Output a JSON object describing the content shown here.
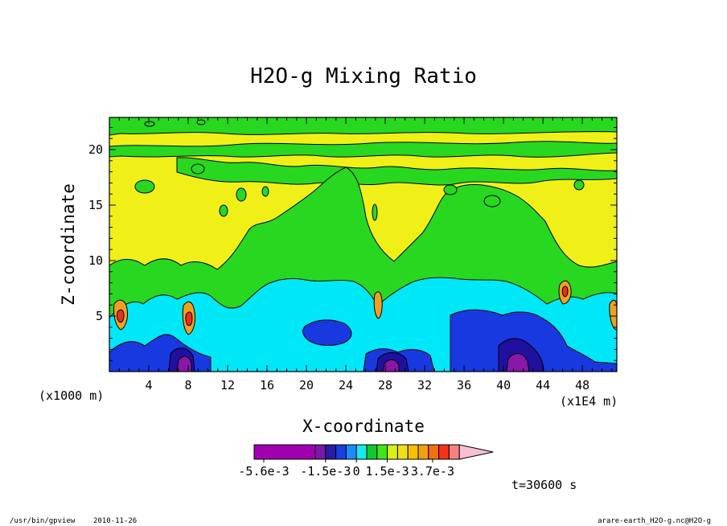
{
  "chart_data": {
    "type": "heatmap",
    "title": "H2O-g Mixing Ratio",
    "xlabel": "X-coordinate",
    "ylabel": "Z-coordinate",
    "x_unit": "(x1E4 m)",
    "y_unit": "(x1000 m)",
    "xlim": [
      0,
      51.5
    ],
    "ylim": [
      0,
      22.9
    ],
    "x_ticks": [
      4,
      8,
      12,
      16,
      20,
      24,
      28,
      32,
      36,
      40,
      44,
      48
    ],
    "x_tick_labels": [
      "4",
      "8",
      "12",
      "16",
      "20",
      "24",
      "28",
      "32",
      "36",
      "40",
      "44",
      "48"
    ],
    "y_ticks": [
      5,
      10,
      15,
      20
    ],
    "y_tick_labels": [
      "5",
      "10",
      "15",
      "20"
    ],
    "colorbar": {
      "colors": [
        "#a000b0",
        "#7a18a8",
        "#2a1aa8",
        "#1a3ee0",
        "#1a8cff",
        "#18e8f0",
        "#10c830",
        "#3ee818",
        "#d8f018",
        "#f0e018",
        "#f8c000",
        "#f0a010",
        "#f07010",
        "#f83018",
        "#f88080",
        "#f8c0d0"
      ],
      "labels": [
        {
          "text": "-5.6e-3",
          "value": -0.0056
        },
        {
          "text": "-1.5e-3",
          "value": -0.0015
        },
        {
          "text": "0",
          "value": 0
        },
        {
          "text": "1.5e-3",
          "value": 0.0015
        },
        {
          "text": "3.7e-3",
          "value": 0.0037
        }
      ]
    },
    "regions": [
      {
        "level": "0 to 5e-4 (yellow)",
        "z_range": [
          10,
          22.9
        ],
        "note": "dominant upper background"
      },
      {
        "level": "-5e-4 to 0 (green)",
        "x_range": [
          19,
          36
        ],
        "z_range": [
          6,
          18
        ],
        "note": "broad green plumes between upper yellow lobes"
      },
      {
        "level": "-1e-3 to -5e-4 (cyan)",
        "x_range": [
          12,
          47
        ],
        "z_range": [
          1,
          9
        ],
        "note": "lower layer"
      },
      {
        "level": "< -2e-3 (blue/purple)",
        "x_range": [
          0,
          51.5
        ],
        "z_range": [
          0,
          5
        ],
        "note": "near-surface minima at x~8, 28, 40"
      },
      {
        "level": "> 1e-3 (orange/red)",
        "x_range": [
          0,
          51.5
        ],
        "z_range": [
          2,
          7
        ],
        "note": "narrow columns at x~1, 8, 26, 46, 50"
      }
    ]
  },
  "annotations": {
    "time": "t=30600 s",
    "program": "/usr/bin/gpview",
    "date": "2010-11-26",
    "source": "arare-earth_H2O-g.nc@H2O-g"
  },
  "colors": {
    "yellow": "#f0f018",
    "green": "#28d820",
    "cyan": "#00e8f8",
    "blue": "#1838e0",
    "navy": "#2010a0",
    "purple": "#8818a8",
    "orange": "#f0a020",
    "red": "#e83018",
    "line": "#000000"
  }
}
